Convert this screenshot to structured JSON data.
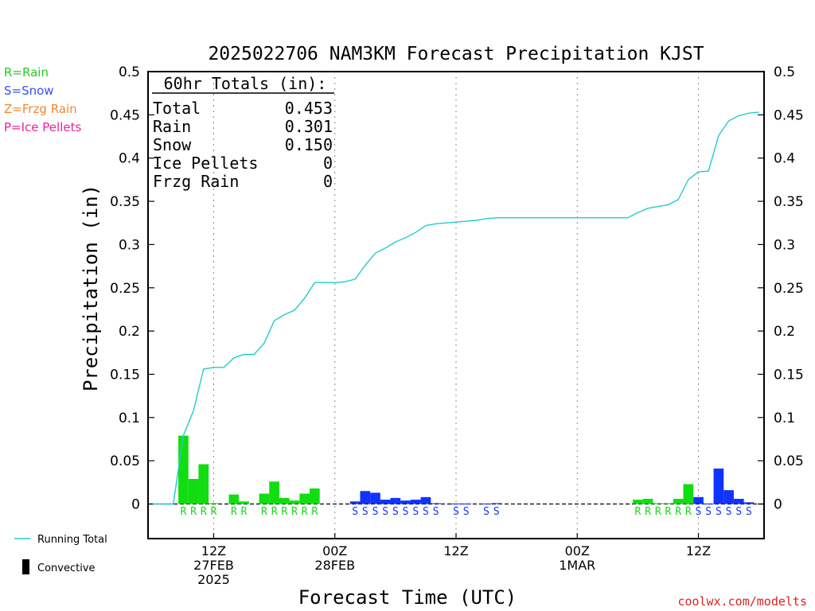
{
  "chart_data": {
    "type": "bar",
    "title": "2025022706 NAM3KM Forecast Precipitation KJST",
    "ylabel": "Precipitation (in)",
    "xlabel": "Forecast Time (UTC)",
    "ylim": [
      -0.04,
      0.5
    ],
    "y_ticks": [
      0,
      0.05,
      0.1,
      0.15,
      0.2,
      0.25,
      0.3,
      0.35,
      0.4,
      0.45,
      0.5
    ],
    "y_tick_labels": [
      "0",
      "0.05",
      "0.1",
      "0.15",
      "0.2",
      "0.25",
      "0.3",
      "0.35",
      "0.4",
      "0.45",
      "0.5"
    ],
    "x_range_forecast_hour": [
      -0.5,
      60.5
    ],
    "x_ticks": [
      {
        "hour": 6,
        "line1": "12Z",
        "line2": "27FEB",
        "line3": "2025"
      },
      {
        "hour": 18,
        "line1": "00Z",
        "line2": "28FEB",
        "line3": ""
      },
      {
        "hour": 30,
        "line1": "12Z",
        "line2": "",
        "line3": ""
      },
      {
        "hour": 42,
        "line1": "00Z",
        "line2": "1MAR",
        "line3": ""
      },
      {
        "hour": 54,
        "line1": "12Z",
        "line2": "",
        "line3": ""
      }
    ],
    "totals_box": {
      "header": "60hr Totals (in):",
      "rows": [
        {
          "label": "Total",
          "value": "0.453"
        },
        {
          "label": "Rain",
          "value": "0.301"
        },
        {
          "label": "Snow",
          "value": "0.150"
        },
        {
          "label": "Ice Pellets",
          "value": "0"
        },
        {
          "label": "Frzg Rain",
          "value": "0"
        }
      ]
    },
    "type_legend": [
      {
        "text": "R=Rain",
        "color": "#22cc22"
      },
      {
        "text": "S=Snow",
        "color": "#3355ee"
      },
      {
        "text": "Z=Frzg Rain",
        "color": "#ee8833"
      },
      {
        "text": "P=Ice Pellets",
        "color": "#ee2299"
      }
    ],
    "series_legend": [
      {
        "name": "Running Total",
        "kind": "line",
        "color": "#22cccc"
      },
      {
        "name": "Convective",
        "kind": "bar",
        "color": "#000000"
      }
    ],
    "colors": {
      "rain": "#11dd11",
      "snow": "#1133ff",
      "running_total": "#22cccc"
    },
    "bars": [
      {
        "hour": 3,
        "value": 0.079,
        "type": "R"
      },
      {
        "hour": 4,
        "value": 0.029,
        "type": "R"
      },
      {
        "hour": 5,
        "value": 0.046,
        "type": "R"
      },
      {
        "hour": 6,
        "value": 0.001,
        "type": "R"
      },
      {
        "hour": 8,
        "value": 0.011,
        "type": "R"
      },
      {
        "hour": 9,
        "value": 0.003,
        "type": "R"
      },
      {
        "hour": 11,
        "value": 0.012,
        "type": "R"
      },
      {
        "hour": 12,
        "value": 0.026,
        "type": "R"
      },
      {
        "hour": 13,
        "value": 0.007,
        "type": "R"
      },
      {
        "hour": 14,
        "value": 0.004,
        "type": "R"
      },
      {
        "hour": 15,
        "value": 0.012,
        "type": "R"
      },
      {
        "hour": 16,
        "value": 0.018,
        "type": "R"
      },
      {
        "hour": 20,
        "value": 0.003,
        "type": "S"
      },
      {
        "hour": 21,
        "value": 0.015,
        "type": "S"
      },
      {
        "hour": 22,
        "value": 0.013,
        "type": "S"
      },
      {
        "hour": 23,
        "value": 0.005,
        "type": "S"
      },
      {
        "hour": 24,
        "value": 0.007,
        "type": "S"
      },
      {
        "hour": 25,
        "value": 0.004,
        "type": "S"
      },
      {
        "hour": 26,
        "value": 0.005,
        "type": "S"
      },
      {
        "hour": 27,
        "value": 0.008,
        "type": "S"
      },
      {
        "hour": 28,
        "value": 0.001,
        "type": "S"
      },
      {
        "hour": 30,
        "value": 0.0005,
        "type": "S"
      },
      {
        "hour": 31,
        "value": 0.0005,
        "type": "S"
      },
      {
        "hour": 33,
        "value": 0.0005,
        "type": "S"
      },
      {
        "hour": 34,
        "value": 0.001,
        "type": "S"
      },
      {
        "hour": 48,
        "value": 0.005,
        "type": "R"
      },
      {
        "hour": 49,
        "value": 0.006,
        "type": "R"
      },
      {
        "hour": 50,
        "value": 0.001,
        "type": "R"
      },
      {
        "hour": 51,
        "value": 0.001,
        "type": "R"
      },
      {
        "hour": 52,
        "value": 0.006,
        "type": "R"
      },
      {
        "hour": 53,
        "value": 0.023,
        "type": "R"
      },
      {
        "hour": 54,
        "value": 0.008,
        "type": "S"
      },
      {
        "hour": 55,
        "value": 0.0005,
        "type": "S"
      },
      {
        "hour": 56,
        "value": 0.041,
        "type": "S"
      },
      {
        "hour": 57,
        "value": 0.016,
        "type": "S"
      },
      {
        "hour": 58,
        "value": 0.006,
        "type": "S"
      },
      {
        "hour": 59,
        "value": 0.002,
        "type": "S"
      }
    ],
    "running_total": [
      [
        0,
        0.0
      ],
      [
        1,
        0.0
      ],
      [
        2,
        0.0
      ],
      [
        3,
        0.079
      ],
      [
        4,
        0.108
      ],
      [
        5,
        0.156
      ],
      [
        6,
        0.158
      ],
      [
        7,
        0.158
      ],
      [
        8,
        0.169
      ],
      [
        9,
        0.173
      ],
      [
        10,
        0.173
      ],
      [
        11,
        0.186
      ],
      [
        12,
        0.212
      ],
      [
        13,
        0.219
      ],
      [
        14,
        0.224
      ],
      [
        15,
        0.238
      ],
      [
        16,
        0.256
      ],
      [
        17,
        0.256
      ],
      [
        18,
        0.256
      ],
      [
        19,
        0.257
      ],
      [
        20,
        0.26
      ],
      [
        21,
        0.276
      ],
      [
        22,
        0.29
      ],
      [
        23,
        0.296
      ],
      [
        24,
        0.303
      ],
      [
        25,
        0.308
      ],
      [
        26,
        0.314
      ],
      [
        27,
        0.322
      ],
      [
        28,
        0.324
      ],
      [
        29,
        0.325
      ],
      [
        30,
        0.326
      ],
      [
        31,
        0.327
      ],
      [
        32,
        0.328
      ],
      [
        33,
        0.33
      ],
      [
        34,
        0.331
      ],
      [
        35,
        0.331
      ],
      [
        36,
        0.331
      ],
      [
        37,
        0.331
      ],
      [
        38,
        0.331
      ],
      [
        39,
        0.331
      ],
      [
        40,
        0.331
      ],
      [
        41,
        0.331
      ],
      [
        42,
        0.331
      ],
      [
        43,
        0.331
      ],
      [
        44,
        0.331
      ],
      [
        45,
        0.331
      ],
      [
        46,
        0.331
      ],
      [
        47,
        0.331
      ],
      [
        48,
        0.337
      ],
      [
        49,
        0.342
      ],
      [
        50,
        0.344
      ],
      [
        51,
        0.346
      ],
      [
        52,
        0.352
      ],
      [
        53,
        0.375
      ],
      [
        54,
        0.384
      ],
      [
        55,
        0.385
      ],
      [
        56,
        0.426
      ],
      [
        57,
        0.443
      ],
      [
        58,
        0.449
      ],
      [
        59,
        0.452
      ],
      [
        60,
        0.453
      ]
    ],
    "credit": "coolwx.com/modelts"
  }
}
